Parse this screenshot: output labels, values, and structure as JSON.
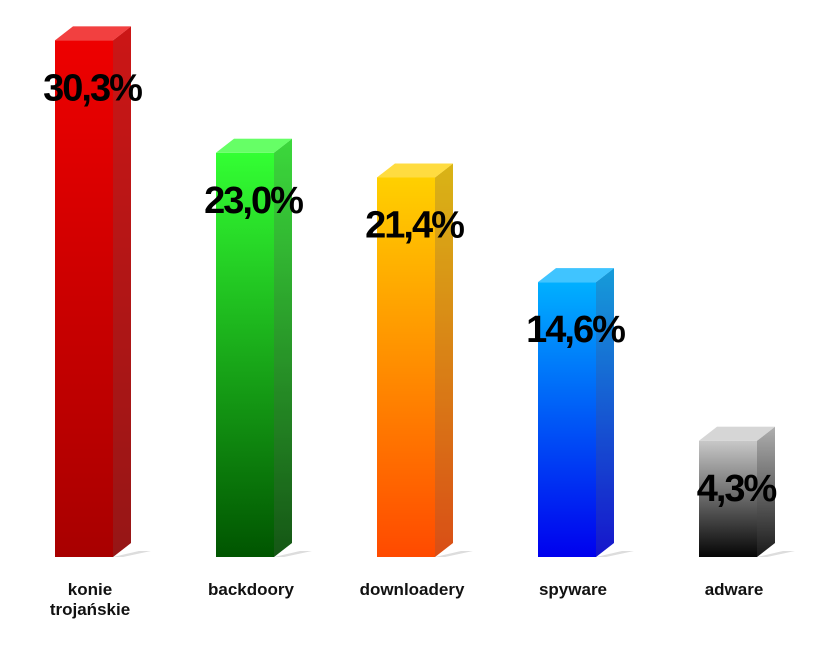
{
  "chart_data": {
    "type": "bar3d",
    "categories": [
      "konie trojańskie",
      "backdoory",
      "downloadery",
      "spyware",
      "adware"
    ],
    "values": [
      30.3,
      23.0,
      21.4,
      14.6,
      4.3
    ],
    "value_labels": [
      "30,3%",
      "23,0%",
      "21,4%",
      "14,6%",
      "4,3%"
    ],
    "colors": [
      [
        "#ee0000",
        "#a80000"
      ],
      [
        "#33ff33",
        "#005500"
      ],
      [
        "#ffd000",
        "#ff4a00"
      ],
      [
        "#00b0ff",
        "#0000ee"
      ],
      [
        "#c8c8c8",
        "#050505"
      ]
    ]
  }
}
